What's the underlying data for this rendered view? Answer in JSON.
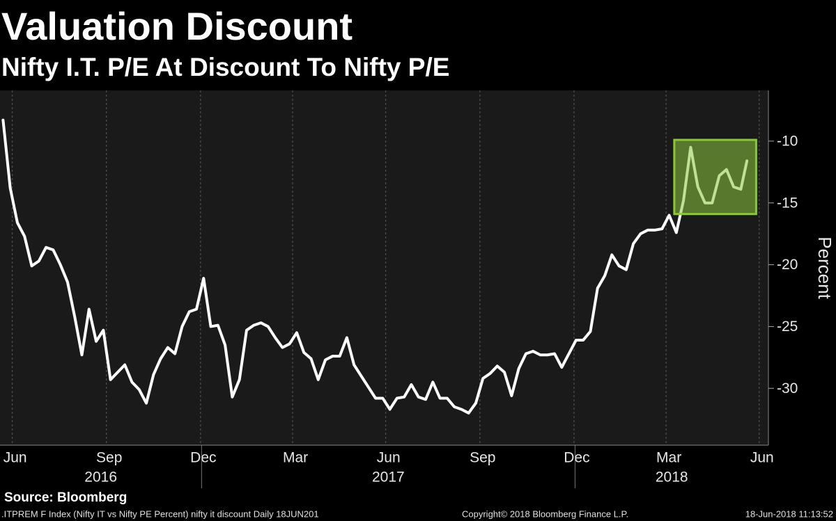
{
  "chart_data": {
    "type": "line",
    "title": "Valuation Discount",
    "subtitle": "Nifty I.T. P/E At Discount To Nifty P/E",
    "y_label": "Percent",
    "source": "Source: Bloomberg",
    "footer": {
      "left": ".ITPREM F Index (Nifty IT vs Nifty PE Percent) nifty it discount  Daily 18JUN201",
      "center": "Copyright© 2018 Bloomberg Finance L.P.",
      "right": "18-Jun-2018 11:13:52"
    },
    "color": "#ffffff",
    "grid": "vertical",
    "x": [
      "2016-06-21",
      "2016-06-28",
      "2016-07-05",
      "2016-07-12",
      "2016-07-19",
      "2016-07-26",
      "2016-08-02",
      "2016-08-09",
      "2016-08-16",
      "2016-08-23",
      "2016-08-30",
      "2016-09-06",
      "2016-09-13",
      "2016-09-20",
      "2016-09-27",
      "2016-10-04",
      "2016-10-11",
      "2016-10-18",
      "2016-10-25",
      "2016-11-01",
      "2016-11-08",
      "2016-11-15",
      "2016-11-22",
      "2016-11-29",
      "2016-12-06",
      "2016-12-13",
      "2016-12-20",
      "2016-12-27",
      "2017-01-03",
      "2017-01-10",
      "2017-01-17",
      "2017-01-24",
      "2017-01-31",
      "2017-02-07",
      "2017-02-14",
      "2017-02-21",
      "2017-02-28",
      "2017-03-07",
      "2017-03-14",
      "2017-03-21",
      "2017-03-28",
      "2017-04-04",
      "2017-04-11",
      "2017-04-18",
      "2017-04-25",
      "2017-05-02",
      "2017-05-09",
      "2017-05-16",
      "2017-05-23",
      "2017-05-30",
      "2017-06-06",
      "2017-06-13",
      "2017-06-20",
      "2017-06-27",
      "2017-07-04",
      "2017-07-11",
      "2017-07-18",
      "2017-07-25",
      "2017-08-01",
      "2017-08-08",
      "2017-08-15",
      "2017-08-22",
      "2017-08-29",
      "2017-09-05",
      "2017-09-12",
      "2017-09-19",
      "2017-09-26",
      "2017-10-03",
      "2017-10-10",
      "2017-10-17",
      "2017-10-24",
      "2017-10-31",
      "2017-11-07",
      "2017-11-14",
      "2017-11-21",
      "2017-11-28",
      "2017-12-05",
      "2017-12-12",
      "2017-12-19",
      "2017-12-26",
      "2018-01-02",
      "2018-01-09",
      "2018-01-16",
      "2018-01-23",
      "2018-01-30",
      "2018-02-06",
      "2018-02-13",
      "2018-02-20",
      "2018-02-27",
      "2018-03-06",
      "2018-03-13",
      "2018-03-20",
      "2018-03-27",
      "2018-04-03",
      "2018-04-10",
      "2018-04-17",
      "2018-04-24",
      "2018-05-01",
      "2018-05-08",
      "2018-05-15",
      "2018-05-22",
      "2018-05-29",
      "2018-06-05",
      "2018-06-12",
      "2018-06-18"
    ],
    "values": [
      -8.3,
      -13.8,
      -16.6,
      -17.7,
      -20.1,
      -19.7,
      -18.6,
      -18.8,
      -20.0,
      -21.4,
      -24.2,
      -27.3,
      -23.6,
      -26.2,
      -25.3,
      -29.3,
      -28.7,
      -28.1,
      -29.5,
      -30.1,
      -31.2,
      -28.9,
      -27.6,
      -26.7,
      -27.2,
      -25.0,
      -23.8,
      -23.6,
      -21.1,
      -25.0,
      -24.9,
      -26.5,
      -30.7,
      -29.3,
      -25.3,
      -24.9,
      -24.7,
      -25.0,
      -25.9,
      -26.7,
      -26.4,
      -25.5,
      -27.1,
      -27.6,
      -29.3,
      -27.7,
      -27.4,
      -27.4,
      -25.9,
      -28.1,
      -29.0,
      -29.9,
      -30.8,
      -30.8,
      -31.7,
      -30.8,
      -30.7,
      -29.7,
      -30.7,
      -30.9,
      -29.5,
      -30.8,
      -30.8,
      -31.5,
      -31.7,
      -32.0,
      -31.2,
      -29.2,
      -28.8,
      -28.2,
      -28.7,
      -30.6,
      -28.4,
      -27.2,
      -27.0,
      -27.3,
      -27.3,
      -27.2,
      -28.3,
      -27.2,
      -26.1,
      -26.1,
      -25.4,
      -21.9,
      -20.9,
      -19.2,
      -20.1,
      -20.4,
      -18.3,
      -17.5,
      -17.2,
      -17.2,
      -17.1,
      -16.0,
      -17.4,
      -14.8,
      -10.5,
      -13.7,
      -15.0,
      -15.0,
      -12.8,
      -12.3,
      -13.7,
      -13.9,
      -11.6
    ],
    "xlim": [
      "2016-06-18",
      "2018-07-09"
    ],
    "xticks": [
      {
        "value": "2016-06-30",
        "label": "Jun"
      },
      {
        "value": "2016-09-30",
        "label": "Sep"
      },
      {
        "value": "2016-12-31",
        "label": "Dec"
      },
      {
        "value": "2017-03-31",
        "label": "Mar"
      },
      {
        "value": "2017-06-30",
        "label": "Jun"
      },
      {
        "value": "2017-09-30",
        "label": "Sep"
      },
      {
        "value": "2017-12-31",
        "label": "Dec"
      },
      {
        "value": "2018-03-31",
        "label": "Mar"
      },
      {
        "value": "2018-06-30",
        "label": "Jun"
      }
    ],
    "years": [
      {
        "value": "2016-01-01",
        "label": "2016"
      },
      {
        "value": "2017-01-01",
        "label": "2017"
      },
      {
        "value": "2018-01-01",
        "label": "2018"
      }
    ],
    "ylim": [
      -34.6,
      -5.9
    ],
    "yticks": [
      -30,
      -25,
      -20,
      -15,
      -10
    ],
    "highlight": {
      "x": [
        "2018-04-08",
        "2018-06-27"
      ],
      "y": [
        -15.9,
        -9.9
      ],
      "color": "#8cc63f"
    }
  }
}
